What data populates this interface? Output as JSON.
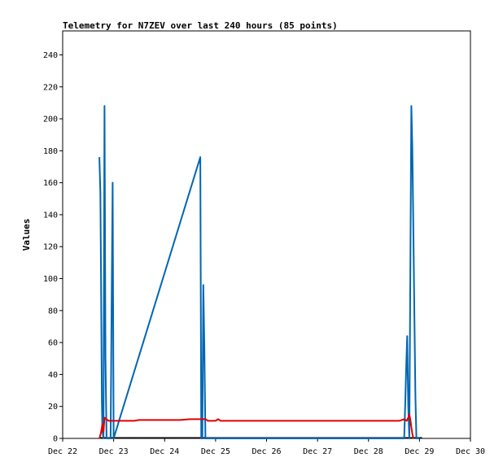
{
  "chart_data": {
    "type": "line",
    "title": "Telemetry for N7ZEV over last 240 hours (85 points)",
    "xlabel": "",
    "ylabel": "Values",
    "x_range_days": [
      22,
      30
    ],
    "ylim": [
      0,
      255
    ],
    "x_ticks": [
      {
        "label": "Dec 22",
        "day": 22
      },
      {
        "label": "Dec 23",
        "day": 23
      },
      {
        "label": "Dec 24",
        "day": 24
      },
      {
        "label": "Dec 25",
        "day": 25
      },
      {
        "label": "Dec 26",
        "day": 26
      },
      {
        "label": "Dec 27",
        "day": 27
      },
      {
        "label": "Dec 28",
        "day": 28
      },
      {
        "label": "Dec 29",
        "day": 29
      },
      {
        "label": "Dec 30",
        "day": 30
      }
    ],
    "y_ticks": [
      0,
      20,
      40,
      60,
      80,
      100,
      120,
      140,
      160,
      180,
      200,
      220,
      240
    ],
    "grid": false,
    "series": [
      {
        "color": "#0066b3",
        "points": [
          [
            22.72,
            176
          ],
          [
            22.74,
            154
          ],
          [
            22.75,
            110
          ],
          [
            22.76,
            67
          ],
          [
            22.77,
            22
          ],
          [
            22.78,
            5
          ],
          [
            22.8,
            0
          ],
          [
            22.82,
            208
          ],
          [
            22.84,
            50
          ],
          [
            22.86,
            0
          ],
          [
            22.9,
            0
          ],
          [
            22.92,
            0
          ],
          [
            22.94,
            0
          ],
          [
            22.96,
            80
          ],
          [
            22.98,
            160
          ],
          [
            23.0,
            0
          ],
          [
            24.7,
            176
          ],
          [
            24.72,
            0
          ],
          [
            24.74,
            0
          ],
          [
            24.76,
            96
          ],
          [
            24.78,
            56
          ],
          [
            24.8,
            0
          ],
          [
            24.85,
            0
          ],
          [
            24.9,
            0
          ],
          [
            28.7,
            0
          ],
          [
            28.72,
            20
          ],
          [
            28.74,
            45
          ],
          [
            28.76,
            64
          ],
          [
            28.78,
            20
          ],
          [
            28.8,
            0
          ],
          [
            28.82,
            100
          ],
          [
            28.84,
            208
          ],
          [
            28.86,
            182
          ],
          [
            28.88,
            130
          ],
          [
            28.9,
            78
          ],
          [
            28.92,
            26
          ],
          [
            28.94,
            0
          ],
          [
            29.0,
            0
          ]
        ]
      },
      {
        "color": "#e00000",
        "points": [
          [
            22.72,
            0
          ],
          [
            22.74,
            2
          ],
          [
            22.76,
            5
          ],
          [
            22.78,
            9
          ],
          [
            22.8,
            4
          ],
          [
            22.82,
            13
          ],
          [
            22.86,
            12
          ],
          [
            22.9,
            11
          ],
          [
            23.0,
            11
          ],
          [
            23.2,
            11
          ],
          [
            23.4,
            11
          ],
          [
            23.5,
            11.5
          ],
          [
            23.7,
            11.5
          ],
          [
            24.0,
            11.5
          ],
          [
            24.3,
            11.5
          ],
          [
            24.5,
            12
          ],
          [
            24.8,
            12
          ],
          [
            24.85,
            11
          ],
          [
            25.0,
            11
          ],
          [
            25.05,
            12
          ],
          [
            25.1,
            11
          ],
          [
            25.5,
            11
          ],
          [
            26.0,
            11
          ],
          [
            26.5,
            11
          ],
          [
            27.0,
            11
          ],
          [
            27.5,
            11
          ],
          [
            28.0,
            11
          ],
          [
            28.5,
            11
          ],
          [
            28.6,
            11
          ],
          [
            28.7,
            12
          ],
          [
            28.75,
            11
          ],
          [
            28.78,
            13
          ],
          [
            28.8,
            15
          ],
          [
            28.82,
            12
          ],
          [
            28.84,
            7
          ],
          [
            28.86,
            3
          ],
          [
            28.88,
            0
          ]
        ]
      }
    ],
    "baseline_color": "#000000"
  }
}
